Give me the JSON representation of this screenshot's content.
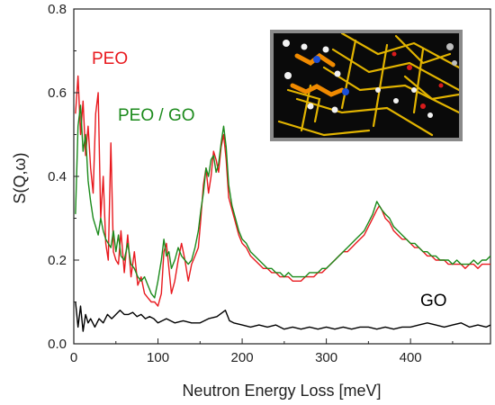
{
  "chart_data": {
    "type": "line",
    "title": "",
    "xlabel": "Neutron Energy Loss [meV]",
    "ylabel": "S(Q,ω)",
    "xlim": [
      0,
      495
    ],
    "ylim": [
      0,
      0.8
    ],
    "x_ticks": [
      0,
      100,
      200,
      300,
      400
    ],
    "y_ticks": [
      0.0,
      0.2,
      0.4,
      0.6,
      0.8
    ],
    "y_tick_labels": [
      "0.0",
      "0.2",
      "0.4",
      "0.6",
      "0.8"
    ],
    "grid": false,
    "legend": "none",
    "series": [
      {
        "name": "PEO",
        "color": "#e8191e",
        "x": [
          2,
          5,
          8,
          11,
          14,
          17,
          20,
          23,
          26,
          29,
          32,
          35,
          38,
          41,
          44,
          47,
          50,
          53,
          56,
          60,
          64,
          68,
          72,
          76,
          80,
          84,
          88,
          92,
          96,
          100,
          104,
          107,
          110,
          113,
          116,
          120,
          124,
          128,
          132,
          136,
          140,
          144,
          148,
          151,
          154,
          157,
          160,
          163,
          166,
          169,
          172,
          175,
          178,
          181,
          184,
          188,
          192,
          196,
          200,
          205,
          210,
          215,
          220,
          225,
          230,
          235,
          240,
          245,
          250,
          255,
          260,
          265,
          270,
          275,
          280,
          285,
          290,
          295,
          300,
          305,
          310,
          315,
          320,
          325,
          330,
          335,
          340,
          345,
          350,
          355,
          360,
          363,
          366,
          370,
          375,
          380,
          385,
          390,
          395,
          400,
          405,
          410,
          415,
          420,
          425,
          430,
          435,
          440,
          445,
          450,
          455,
          460,
          465,
          470,
          475,
          480,
          485,
          490,
          495
        ],
        "y": [
          0.55,
          0.64,
          0.5,
          0.58,
          0.45,
          0.52,
          0.42,
          0.36,
          0.55,
          0.6,
          0.3,
          0.4,
          0.24,
          0.2,
          0.48,
          0.22,
          0.2,
          0.19,
          0.27,
          0.17,
          0.26,
          0.16,
          0.22,
          0.14,
          0.16,
          0.12,
          0.11,
          0.1,
          0.1,
          0.09,
          0.12,
          0.22,
          0.24,
          0.18,
          0.12,
          0.15,
          0.2,
          0.24,
          0.2,
          0.15,
          0.19,
          0.21,
          0.23,
          0.3,
          0.38,
          0.42,
          0.36,
          0.4,
          0.46,
          0.44,
          0.41,
          0.47,
          0.5,
          0.44,
          0.35,
          0.32,
          0.29,
          0.26,
          0.24,
          0.23,
          0.21,
          0.2,
          0.19,
          0.18,
          0.18,
          0.17,
          0.17,
          0.16,
          0.16,
          0.16,
          0.15,
          0.15,
          0.15,
          0.16,
          0.16,
          0.16,
          0.17,
          0.17,
          0.18,
          0.19,
          0.2,
          0.21,
          0.22,
          0.22,
          0.23,
          0.24,
          0.25,
          0.26,
          0.28,
          0.3,
          0.32,
          0.33,
          0.32,
          0.3,
          0.29,
          0.27,
          0.26,
          0.25,
          0.25,
          0.24,
          0.23,
          0.23,
          0.22,
          0.21,
          0.21,
          0.2,
          0.2,
          0.2,
          0.19,
          0.19,
          0.19,
          0.19,
          0.18,
          0.19,
          0.19,
          0.18,
          0.19,
          0.19,
          0.19
        ]
      },
      {
        "name": "PEO / GO",
        "color": "#1b8a1b",
        "x": [
          2,
          5,
          8,
          11,
          14,
          17,
          20,
          23,
          26,
          29,
          32,
          35,
          38,
          41,
          44,
          47,
          50,
          53,
          56,
          60,
          64,
          68,
          72,
          76,
          80,
          84,
          88,
          92,
          96,
          100,
          104,
          107,
          110,
          113,
          116,
          120,
          124,
          128,
          132,
          136,
          140,
          144,
          148,
          151,
          154,
          157,
          160,
          163,
          166,
          169,
          172,
          175,
          178,
          181,
          184,
          188,
          192,
          196,
          200,
          205,
          210,
          215,
          220,
          225,
          230,
          235,
          240,
          245,
          250,
          255,
          260,
          265,
          270,
          275,
          280,
          285,
          290,
          295,
          300,
          305,
          310,
          315,
          320,
          325,
          330,
          335,
          340,
          345,
          350,
          355,
          360,
          363,
          366,
          370,
          375,
          380,
          385,
          390,
          395,
          400,
          405,
          410,
          415,
          420,
          425,
          430,
          435,
          440,
          445,
          450,
          455,
          460,
          465,
          470,
          475,
          480,
          485,
          490,
          495
        ],
        "y": [
          0.31,
          0.52,
          0.57,
          0.46,
          0.5,
          0.39,
          0.34,
          0.3,
          0.28,
          0.26,
          0.3,
          0.27,
          0.25,
          0.24,
          0.23,
          0.27,
          0.22,
          0.26,
          0.21,
          0.2,
          0.24,
          0.19,
          0.18,
          0.16,
          0.15,
          0.16,
          0.14,
          0.12,
          0.11,
          0.15,
          0.2,
          0.25,
          0.21,
          0.22,
          0.18,
          0.2,
          0.23,
          0.21,
          0.2,
          0.19,
          0.2,
          0.23,
          0.27,
          0.32,
          0.36,
          0.42,
          0.4,
          0.44,
          0.45,
          0.41,
          0.43,
          0.48,
          0.52,
          0.47,
          0.38,
          0.33,
          0.3,
          0.27,
          0.25,
          0.24,
          0.22,
          0.21,
          0.2,
          0.19,
          0.18,
          0.18,
          0.17,
          0.17,
          0.16,
          0.17,
          0.16,
          0.16,
          0.16,
          0.16,
          0.17,
          0.17,
          0.17,
          0.18,
          0.18,
          0.19,
          0.2,
          0.21,
          0.22,
          0.23,
          0.24,
          0.25,
          0.26,
          0.27,
          0.29,
          0.31,
          0.34,
          0.33,
          0.32,
          0.31,
          0.3,
          0.28,
          0.27,
          0.26,
          0.25,
          0.24,
          0.24,
          0.23,
          0.22,
          0.22,
          0.21,
          0.21,
          0.2,
          0.2,
          0.2,
          0.19,
          0.2,
          0.19,
          0.19,
          0.19,
          0.2,
          0.19,
          0.2,
          0.2,
          0.21
        ]
      },
      {
        "name": "GO",
        "color": "#000000",
        "x": [
          2,
          5,
          8,
          11,
          14,
          17,
          20,
          25,
          30,
          35,
          40,
          45,
          50,
          55,
          60,
          65,
          70,
          75,
          80,
          85,
          90,
          95,
          100,
          110,
          120,
          130,
          140,
          150,
          160,
          170,
          180,
          185,
          190,
          200,
          210,
          220,
          230,
          240,
          250,
          260,
          270,
          280,
          290,
          300,
          310,
          320,
          330,
          340,
          350,
          360,
          370,
          380,
          390,
          400,
          410,
          420,
          430,
          440,
          450,
          460,
          470,
          480,
          490,
          495
        ],
        "y": [
          0.1,
          0.04,
          0.09,
          0.03,
          0.07,
          0.05,
          0.06,
          0.04,
          0.06,
          0.05,
          0.07,
          0.06,
          0.07,
          0.08,
          0.07,
          0.07,
          0.075,
          0.065,
          0.07,
          0.06,
          0.065,
          0.06,
          0.05,
          0.06,
          0.05,
          0.055,
          0.05,
          0.05,
          0.06,
          0.065,
          0.08,
          0.055,
          0.05,
          0.045,
          0.04,
          0.045,
          0.04,
          0.045,
          0.035,
          0.04,
          0.035,
          0.04,
          0.035,
          0.04,
          0.035,
          0.04,
          0.035,
          0.04,
          0.04,
          0.035,
          0.04,
          0.035,
          0.04,
          0.04,
          0.045,
          0.05,
          0.045,
          0.04,
          0.045,
          0.05,
          0.04,
          0.045,
          0.04,
          0.045
        ]
      }
    ],
    "annotations": [
      {
        "text": "PEO",
        "color": "#e8191e"
      },
      {
        "text": "PEO / GO",
        "color": "#1b8a1b"
      },
      {
        "text": "GO",
        "color": "#000000"
      }
    ],
    "inset": {
      "description_icon": "molecular-structure-icon"
    }
  }
}
